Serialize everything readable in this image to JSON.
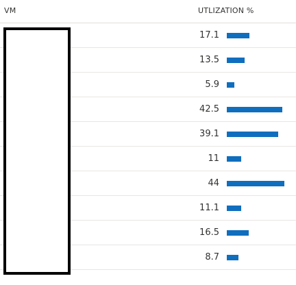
{
  "table": {
    "headers": {
      "vm": "VM",
      "utilization": "UTLIZATION %"
    },
    "bar_color": "#106ebe",
    "bar_max_value": 46,
    "rows": [
      {
        "value": "17.1",
        "fraction": 0.171
      },
      {
        "value": "13.5",
        "fraction": 0.135
      },
      {
        "value": "5.9",
        "fraction": 0.059
      },
      {
        "value": "42.5",
        "fraction": 0.425
      },
      {
        "value": "39.1",
        "fraction": 0.391
      },
      {
        "value": "11",
        "fraction": 0.11
      },
      {
        "value": "44",
        "fraction": 0.44
      },
      {
        "value": "11.1",
        "fraction": 0.111
      },
      {
        "value": "16.5",
        "fraction": 0.165
      },
      {
        "value": "8.7",
        "fraction": 0.087
      }
    ]
  }
}
